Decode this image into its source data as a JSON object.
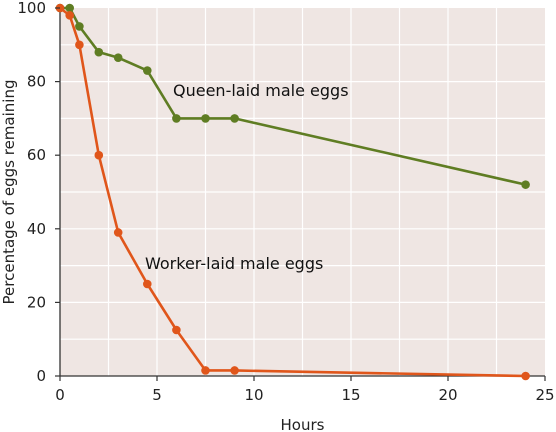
{
  "chart_data": {
    "type": "line",
    "title": "",
    "xlabel": "Hours",
    "ylabel": "Percentage of eggs remaining",
    "xlim": [
      0,
      25
    ],
    "ylim": [
      0,
      100
    ],
    "xticks": [
      0,
      5,
      10,
      15,
      20,
      25
    ],
    "yticks": [
      0,
      20,
      40,
      60,
      80,
      100
    ],
    "grid": true,
    "background_color": "#efe6e3",
    "grid_color": "#ffffff",
    "series": [
      {
        "name": "Queen-laid male eggs",
        "color": "#5f7d23",
        "x": [
          0,
          0.5,
          1,
          2,
          3,
          4.5,
          6,
          7.5,
          9,
          24
        ],
        "y": [
          100,
          100,
          95,
          88,
          86.5,
          83,
          70,
          70,
          70,
          52
        ]
      },
      {
        "name": "Worker-laid male eggs",
        "color": "#e0561b",
        "x": [
          0,
          0.5,
          1,
          2,
          3,
          4.5,
          6,
          7.5,
          9,
          24
        ],
        "y": [
          100,
          98,
          90,
          60,
          39,
          25,
          12.5,
          1.5,
          1.5,
          0
        ]
      }
    ]
  }
}
